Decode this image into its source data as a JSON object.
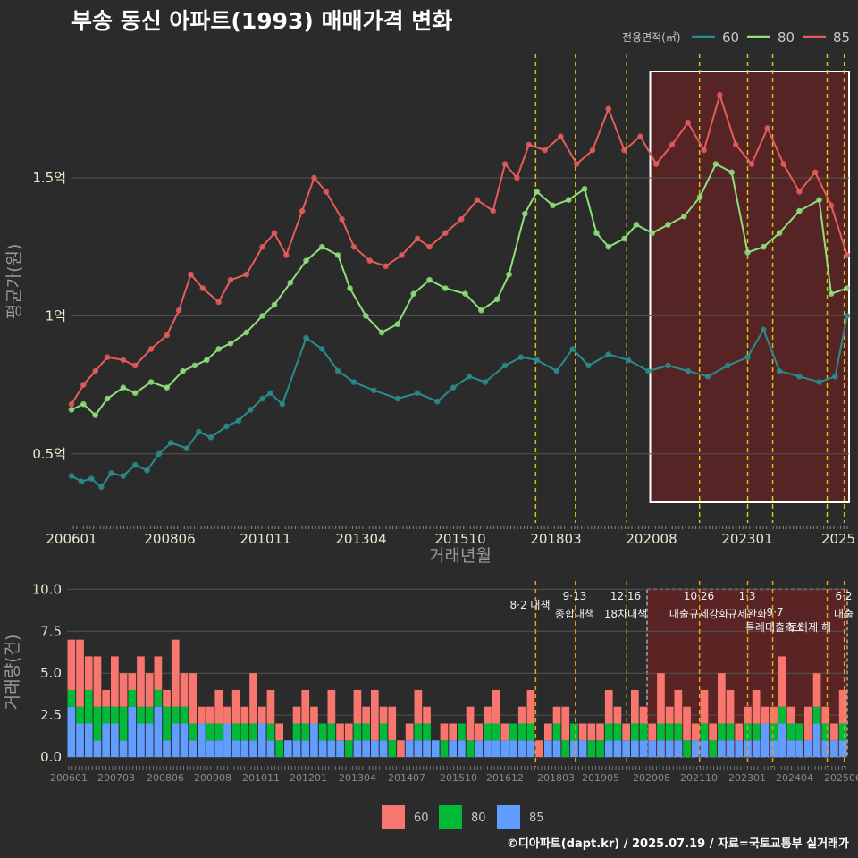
{
  "title": "부송 동신 아파트(1993) 매매가격 변화",
  "footer": "©디아파트(dapt.kr) / 2025.07.19 / 자료=국토교통부 실거래가",
  "colors": {
    "s60": "#2a8c8c",
    "s80": "#8ee07a",
    "s85": "#e65c5c",
    "b60": "#f8766d",
    "b80": "#00ba38",
    "b85": "#619cff",
    "vline": "#d4c414",
    "highlight": "#7a1f1f",
    "background": "#2b2b2b"
  },
  "chart_data": [
    {
      "type": "line",
      "title": "부송 동신 아파트(1993) 매매가격 변화",
      "xlabel": "거래년월",
      "ylabel": "평균가(원)",
      "ylim": [
        0.25,
        1.95
      ],
      "legend_title": "전용면적(㎡)",
      "legend_position": "top-right",
      "x_ticks": [
        "200601",
        "200806",
        "201011",
        "201304",
        "201510",
        "201803",
        "202008",
        "202301",
        "2025"
      ],
      "y_ticks": [
        {
          "v": 0.5,
          "label": "0.5억"
        },
        {
          "v": 1.0,
          "label": "1억"
        },
        {
          "v": 1.5,
          "label": "1.5억"
        }
      ],
      "vlines": [
        2017.67,
        2018.67,
        2019.96,
        2021.79,
        2023.0,
        2023.63,
        2025.0,
        2025.43
      ],
      "highlight_range": [
        2020.55,
        2025.55
      ],
      "series": [
        {
          "name": "60",
          "points": [
            [
              2006.0,
              0.42
            ],
            [
              2006.25,
              0.4
            ],
            [
              2006.5,
              0.41
            ],
            [
              2006.75,
              0.38
            ],
            [
              2007.0,
              0.43
            ],
            [
              2007.3,
              0.42
            ],
            [
              2007.6,
              0.46
            ],
            [
              2007.9,
              0.44
            ],
            [
              2008.2,
              0.5
            ],
            [
              2008.5,
              0.54
            ],
            [
              2008.9,
              0.52
            ],
            [
              2009.2,
              0.58
            ],
            [
              2009.5,
              0.56
            ],
            [
              2009.9,
              0.6
            ],
            [
              2010.2,
              0.62
            ],
            [
              2010.5,
              0.66
            ],
            [
              2010.8,
              0.7
            ],
            [
              2011.0,
              0.72
            ],
            [
              2011.3,
              0.68
            ],
            [
              2011.9,
              0.92
            ],
            [
              2012.3,
              0.88
            ],
            [
              2012.7,
              0.8
            ],
            [
              2013.1,
              0.76
            ],
            [
              2013.6,
              0.73
            ],
            [
              2014.2,
              0.7
            ],
            [
              2014.7,
              0.72
            ],
            [
              2015.2,
              0.69
            ],
            [
              2015.6,
              0.74
            ],
            [
              2016.0,
              0.78
            ],
            [
              2016.4,
              0.76
            ],
            [
              2016.9,
              0.82
            ],
            [
              2017.3,
              0.85
            ],
            [
              2017.7,
              0.84
            ],
            [
              2018.2,
              0.8
            ],
            [
              2018.6,
              0.88
            ],
            [
              2019.0,
              0.82
            ],
            [
              2019.5,
              0.86
            ],
            [
              2020.0,
              0.84
            ],
            [
              2020.5,
              0.8
            ],
            [
              2021.0,
              0.82
            ],
            [
              2021.5,
              0.8
            ],
            [
              2022.0,
              0.78
            ],
            [
              2022.5,
              0.82
            ],
            [
              2023.0,
              0.85
            ],
            [
              2023.4,
              0.95
            ],
            [
              2023.8,
              0.8
            ],
            [
              2024.3,
              0.78
            ],
            [
              2024.8,
              0.76
            ],
            [
              2025.2,
              0.78
            ],
            [
              2025.5,
              1.0
            ]
          ]
        },
        {
          "name": "80",
          "points": [
            [
              2006.0,
              0.66
            ],
            [
              2006.3,
              0.68
            ],
            [
              2006.6,
              0.64
            ],
            [
              2006.9,
              0.7
            ],
            [
              2007.3,
              0.74
            ],
            [
              2007.6,
              0.72
            ],
            [
              2008.0,
              0.76
            ],
            [
              2008.4,
              0.74
            ],
            [
              2008.8,
              0.8
            ],
            [
              2009.1,
              0.82
            ],
            [
              2009.4,
              0.84
            ],
            [
              2009.7,
              0.88
            ],
            [
              2010.0,
              0.9
            ],
            [
              2010.4,
              0.94
            ],
            [
              2010.8,
              1.0
            ],
            [
              2011.1,
              1.04
            ],
            [
              2011.5,
              1.12
            ],
            [
              2011.9,
              1.2
            ],
            [
              2012.3,
              1.25
            ],
            [
              2012.7,
              1.22
            ],
            [
              2013.0,
              1.1
            ],
            [
              2013.4,
              1.0
            ],
            [
              2013.8,
              0.94
            ],
            [
              2014.2,
              0.97
            ],
            [
              2014.6,
              1.08
            ],
            [
              2015.0,
              1.13
            ],
            [
              2015.4,
              1.1
            ],
            [
              2015.9,
              1.08
            ],
            [
              2016.3,
              1.02
            ],
            [
              2016.7,
              1.06
            ],
            [
              2017.0,
              1.15
            ],
            [
              2017.4,
              1.37
            ],
            [
              2017.7,
              1.45
            ],
            [
              2018.1,
              1.4
            ],
            [
              2018.5,
              1.42
            ],
            [
              2018.9,
              1.46
            ],
            [
              2019.2,
              1.3
            ],
            [
              2019.5,
              1.25
            ],
            [
              2019.9,
              1.28
            ],
            [
              2020.2,
              1.33
            ],
            [
              2020.6,
              1.3
            ],
            [
              2021.0,
              1.33
            ],
            [
              2021.4,
              1.36
            ],
            [
              2021.8,
              1.43
            ],
            [
              2022.2,
              1.55
            ],
            [
              2022.6,
              1.52
            ],
            [
              2023.0,
              1.23
            ],
            [
              2023.4,
              1.25
            ],
            [
              2023.8,
              1.3
            ],
            [
              2024.3,
              1.38
            ],
            [
              2024.8,
              1.42
            ],
            [
              2025.1,
              1.08
            ],
            [
              2025.5,
              1.1
            ]
          ]
        },
        {
          "name": "85",
          "points": [
            [
              2006.0,
              0.68
            ],
            [
              2006.3,
              0.75
            ],
            [
              2006.6,
              0.8
            ],
            [
              2006.9,
              0.85
            ],
            [
              2007.3,
              0.84
            ],
            [
              2007.6,
              0.82
            ],
            [
              2008.0,
              0.88
            ],
            [
              2008.4,
              0.93
            ],
            [
              2008.7,
              1.02
            ],
            [
              2009.0,
              1.15
            ],
            [
              2009.3,
              1.1
            ],
            [
              2009.7,
              1.05
            ],
            [
              2010.0,
              1.13
            ],
            [
              2010.4,
              1.15
            ],
            [
              2010.8,
              1.25
            ],
            [
              2011.1,
              1.3
            ],
            [
              2011.4,
              1.22
            ],
            [
              2011.8,
              1.38
            ],
            [
              2012.1,
              1.5
            ],
            [
              2012.4,
              1.45
            ],
            [
              2012.8,
              1.35
            ],
            [
              2013.1,
              1.25
            ],
            [
              2013.5,
              1.2
            ],
            [
              2013.9,
              1.18
            ],
            [
              2014.3,
              1.22
            ],
            [
              2014.7,
              1.28
            ],
            [
              2015.0,
              1.25
            ],
            [
              2015.4,
              1.3
            ],
            [
              2015.8,
              1.35
            ],
            [
              2016.2,
              1.42
            ],
            [
              2016.6,
              1.38
            ],
            [
              2016.9,
              1.55
            ],
            [
              2017.2,
              1.5
            ],
            [
              2017.5,
              1.62
            ],
            [
              2017.9,
              1.6
            ],
            [
              2018.3,
              1.65
            ],
            [
              2018.7,
              1.55
            ],
            [
              2019.1,
              1.6
            ],
            [
              2019.5,
              1.75
            ],
            [
              2019.9,
              1.6
            ],
            [
              2020.3,
              1.65
            ],
            [
              2020.7,
              1.55
            ],
            [
              2021.1,
              1.62
            ],
            [
              2021.5,
              1.7
            ],
            [
              2021.9,
              1.6
            ],
            [
              2022.3,
              1.8
            ],
            [
              2022.7,
              1.62
            ],
            [
              2023.1,
              1.55
            ],
            [
              2023.5,
              1.68
            ],
            [
              2023.9,
              1.55
            ],
            [
              2024.3,
              1.45
            ],
            [
              2024.7,
              1.52
            ],
            [
              2025.1,
              1.4
            ],
            [
              2025.5,
              1.22
            ]
          ]
        }
      ]
    },
    {
      "type": "bar",
      "ylabel": "거래량(건)",
      "ylim": [
        0,
        10.5
      ],
      "x_ticks": [
        "200601",
        "200703",
        "200806",
        "200908",
        "201011",
        "201201",
        "201304",
        "201407",
        "201510",
        "201612",
        "201803",
        "201905",
        "202008",
        "202110",
        "202301",
        "202404",
        "202506"
      ],
      "y_ticks": [
        "0.0",
        "2.5",
        "5.0",
        "7.5",
        "10.0"
      ],
      "legend_position": "bottom",
      "legend": [
        "60",
        "80",
        "85"
      ],
      "events": [
        {
          "x": 2017.67,
          "date": "8·2",
          "label": "대책"
        },
        {
          "x": 2018.67,
          "date": "9·13",
          "label": "종합대책"
        },
        {
          "x": 2019.96,
          "date": "12·16",
          "label": "18차대책"
        },
        {
          "x": 2021.79,
          "date": "10·26",
          "label": "대출규제강화"
        },
        {
          "x": 2023.0,
          "date": "1·3",
          "label": "규제완화"
        },
        {
          "x": 2023.63,
          "date": "9·7",
          "label": "특례대출축소"
        },
        {
          "x": 2025.0,
          "date": "",
          "label": "토허제 해"
        },
        {
          "x": 2025.43,
          "date": "6·2",
          "label": "대출"
        }
      ],
      "series": [
        {
          "name": "85",
          "values": [
            3,
            2,
            2,
            1,
            2,
            2,
            1,
            3,
            2,
            2,
            3,
            1,
            2,
            2,
            1,
            2,
            1,
            1,
            2,
            1,
            1,
            1,
            2,
            1,
            0,
            1,
            1,
            1,
            2,
            1,
            1,
            1,
            0,
            1,
            1,
            1,
            1,
            0,
            0,
            1,
            1,
            1,
            1,
            0,
            1,
            1,
            0,
            1,
            1,
            1,
            1,
            1,
            1,
            1,
            0,
            1,
            1,
            0,
            1,
            1,
            0,
            0,
            1,
            1,
            1,
            1,
            1,
            1,
            1,
            1,
            1,
            0,
            1,
            1,
            0,
            1,
            1,
            1,
            1,
            1,
            2,
            1,
            2,
            1,
            1,
            1,
            2,
            1,
            1,
            1
          ]
        },
        {
          "name": "80",
          "values": [
            1,
            1,
            2,
            2,
            1,
            1,
            2,
            1,
            1,
            1,
            1,
            2,
            1,
            1,
            1,
            0,
            1,
            1,
            0,
            1,
            1,
            1,
            0,
            1,
            1,
            0,
            1,
            1,
            0,
            1,
            1,
            0,
            1,
            1,
            1,
            0,
            1,
            1,
            0,
            0,
            1,
            1,
            0,
            1,
            0,
            1,
            1,
            0,
            1,
            1,
            0,
            1,
            1,
            1,
            0,
            0,
            1,
            1,
            1,
            0,
            1,
            1,
            1,
            1,
            0,
            1,
            1,
            0,
            1,
            1,
            1,
            1,
            0,
            1,
            1,
            1,
            1,
            0,
            1,
            1,
            0,
            1,
            1,
            1,
            1,
            0,
            1,
            1,
            0,
            1
          ]
        },
        {
          "name": "60",
          "values": [
            3,
            4,
            2,
            3,
            1,
            3,
            2,
            1,
            3,
            2,
            2,
            1,
            4,
            2,
            3,
            1,
            1,
            2,
            1,
            2,
            1,
            3,
            1,
            2,
            1,
            0,
            1,
            2,
            1,
            0,
            2,
            1,
            1,
            2,
            1,
            3,
            1,
            2,
            1,
            1,
            2,
            1,
            0,
            1,
            1,
            0,
            2,
            1,
            1,
            2,
            1,
            0,
            1,
            2,
            1,
            1,
            1,
            2,
            0,
            1,
            1,
            1,
            2,
            1,
            1,
            2,
            1,
            1,
            3,
            1,
            2,
            2,
            1,
            2,
            1,
            3,
            2,
            1,
            1,
            2,
            1,
            1,
            3,
            1,
            0,
            2,
            2,
            1,
            1,
            2
          ]
        }
      ]
    }
  ]
}
